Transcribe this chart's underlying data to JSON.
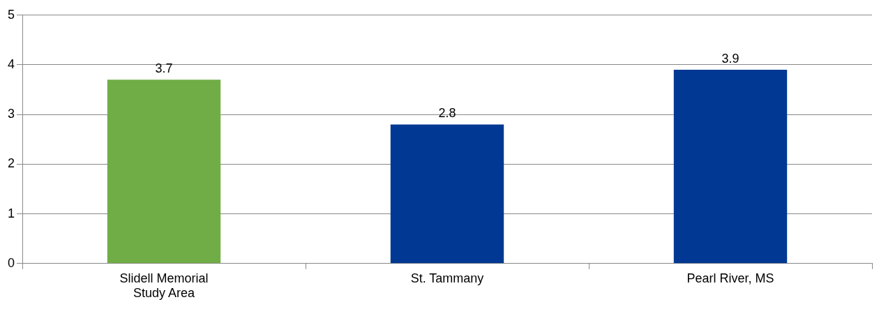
{
  "chart_data": {
    "type": "bar",
    "categories": [
      "Slidell Memorial Study Area",
      "St. Tammany",
      "Pearl River, MS"
    ],
    "values": [
      3.7,
      2.8,
      3.9
    ],
    "colors": [
      "#70ad47",
      "#003893",
      "#003893"
    ],
    "ylim": [
      0,
      5
    ],
    "yticks": [
      0,
      1,
      2,
      3,
      4,
      5
    ],
    "grid": "y",
    "data_labels": true,
    "legend": false
  }
}
